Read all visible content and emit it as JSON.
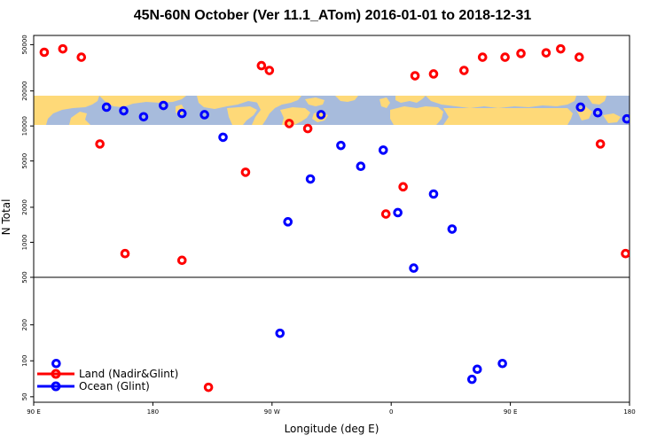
{
  "title": "45N-60N October (Ver 11.1_ATom)   2016-01-01 to 2018-12-31",
  "colors": {
    "land": "#ff0000",
    "ocean": "#0000ff",
    "map_water": "#a7bbdc",
    "map_land": "#fed978"
  },
  "chart_data": {
    "type": "scatter",
    "title": "45N-60N October (Ver 11.1_ATom)   2016-01-01 to 2018-12-31",
    "xlabel": "Longitude (deg E)",
    "ylabel": "N Total",
    "x_tick_labels": [
      "90 E",
      "180",
      "90 W",
      "0",
      "90 E",
      "180"
    ],
    "x_tick_values": [
      90,
      180,
      270,
      360,
      450,
      540
    ],
    "xlim": [
      90,
      540
    ],
    "y_tick_labels": [
      "50000",
      "20000",
      "10000",
      "5000",
      "2000",
      "1000",
      "500",
      "200",
      "100",
      "50"
    ],
    "y_tick_values": [
      50000,
      20000,
      10000,
      5000,
      2000,
      1000,
      500,
      200,
      100,
      50
    ],
    "upper_panel_ylim": [
      500,
      60000
    ],
    "lower_panel_ylim": [
      45,
      500
    ],
    "y_scale": "log",
    "grid": false,
    "legend_position": "bottom-left",
    "series": [
      {
        "name": "Land (Nadir&Glint)",
        "color": "#ff0000",
        "x": [
          98,
          112,
          126,
          140,
          159,
          202,
          222,
          250,
          262,
          268,
          283,
          297,
          356,
          369,
          378,
          392,
          415,
          429,
          446,
          458,
          477,
          488,
          502,
          518,
          537
        ],
        "y": [
          43000,
          46000,
          39000,
          7000,
          800,
          700,
          60,
          4000,
          33000,
          30000,
          10500,
          9500,
          1750,
          3000,
          27000,
          28000,
          30000,
          39000,
          39000,
          42000,
          42500,
          46000,
          39000,
          7000,
          800
        ]
      },
      {
        "name": "Ocean (Glint)",
        "color": "#0000ff",
        "x": [
          107,
          145,
          158,
          173,
          188,
          202,
          219,
          233,
          276,
          282,
          299,
          307,
          322,
          337,
          354,
          365,
          377,
          392,
          406,
          421,
          425,
          444,
          503,
          516,
          538
        ],
        "y": [
          95,
          14500,
          13500,
          12000,
          15000,
          12800,
          12500,
          8000,
          170,
          1500,
          3500,
          12500,
          6800,
          4500,
          6200,
          1800,
          600,
          2600,
          1300,
          70,
          85,
          95,
          14500,
          13000,
          11500
        ]
      }
    ]
  }
}
